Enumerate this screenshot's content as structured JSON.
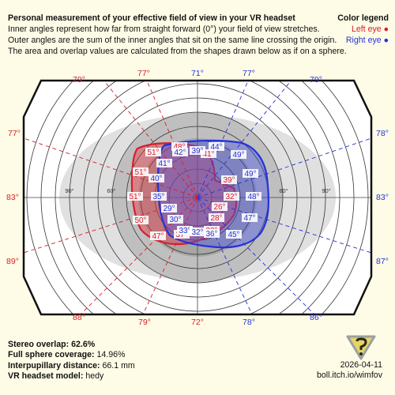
{
  "header": {
    "title": "Personal measurement of your effective field of view in your VR headset",
    "line1": "Inner angles represent how far from straight forward (0°) your field of view stretches.",
    "line2": "Outer angles are the sum of the inner angles that sit on the same line crossing the origin.",
    "line3": "The area and overlap values are calculated from the shapes drawn below as if on a sphere."
  },
  "legend": {
    "title": "Color legend",
    "left_eye": "Left eye ●",
    "right_eye": "Right eye ●"
  },
  "colors": {
    "left_eye": "#d81e2a",
    "right_eye": "#2432d8",
    "background": "#fefce6"
  },
  "outer_angles": {
    "left_eye": [
      "79°",
      "77°",
      "77°",
      "83°",
      "89°",
      "88°",
      "79°",
      "72°"
    ],
    "right_eye": [
      "71°",
      "77°",
      "79°",
      "78°",
      "83°",
      "87°",
      "86°",
      "78°"
    ]
  },
  "ring_labels": [
    "90°",
    "60°",
    "60°",
    "90°"
  ],
  "left_eye_labels": [
    "51°",
    "48°",
    "41°",
    "51°",
    "39°",
    "51°",
    "32°",
    "50°",
    "26°",
    "28°",
    "47°",
    "37°",
    "32°"
  ],
  "right_eye_labels": [
    "42°",
    "39°",
    "44°",
    "41°",
    "49°",
    "40°",
    "49°",
    "35°",
    "48°",
    "29°",
    "47°",
    "30°",
    "33°",
    "32°",
    "36°",
    "45°"
  ],
  "stats": {
    "stereo_overlap_label": "Stereo overlap:",
    "stereo_overlap_value": "62.6%",
    "full_sphere_label": "Full sphere coverage:",
    "full_sphere_value": "14.96%",
    "ipd_label": "Interpupillary distance:",
    "ipd_value": "66.1 mm",
    "headset_label": "VR headset model:",
    "headset_value": "hedy"
  },
  "date": "2026-04-11",
  "site": "boll.itch.io/wimfov"
}
